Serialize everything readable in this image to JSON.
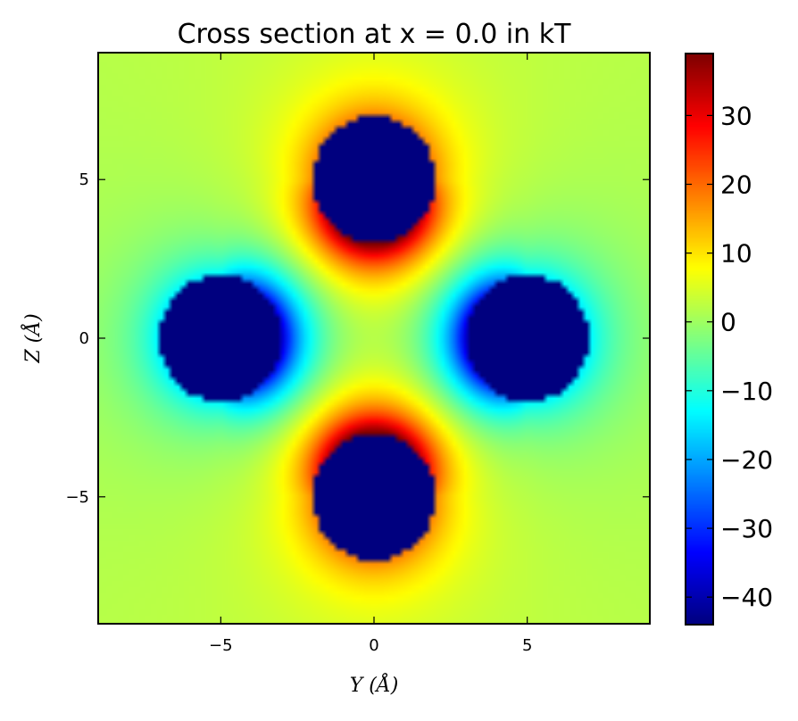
{
  "chart_data": {
    "type": "heatmap",
    "title": "Cross section at x = 0.0 in kT",
    "xlabel": "Y (Å)",
    "ylabel": "Z (Å)",
    "xlim": [
      -9,
      9
    ],
    "ylim": [
      -9,
      9
    ],
    "xticks": [
      -5,
      0,
      5
    ],
    "yticks": [
      -5,
      0,
      5
    ],
    "colorbar": {
      "colormap": "jet",
      "range": [
        -44,
        39
      ],
      "ticks": [
        30,
        20,
        10,
        0,
        -10,
        -20,
        -30,
        -40
      ],
      "tick_labels": [
        "30",
        "20",
        "10",
        "0",
        "−10",
        "−20",
        "−30",
        "−40"
      ]
    },
    "background_value": 2,
    "grid": false,
    "masked_color": "#00007f",
    "spheres": [
      {
        "y": 0,
        "z": 5,
        "radius": 2,
        "sign": 1
      },
      {
        "y": 0,
        "z": -5,
        "radius": 2,
        "sign": 1
      },
      {
        "y": -5,
        "z": 0,
        "radius": 2,
        "sign": -1
      },
      {
        "y": 5,
        "z": 0,
        "radius": 2,
        "sign": -1
      }
    ]
  }
}
